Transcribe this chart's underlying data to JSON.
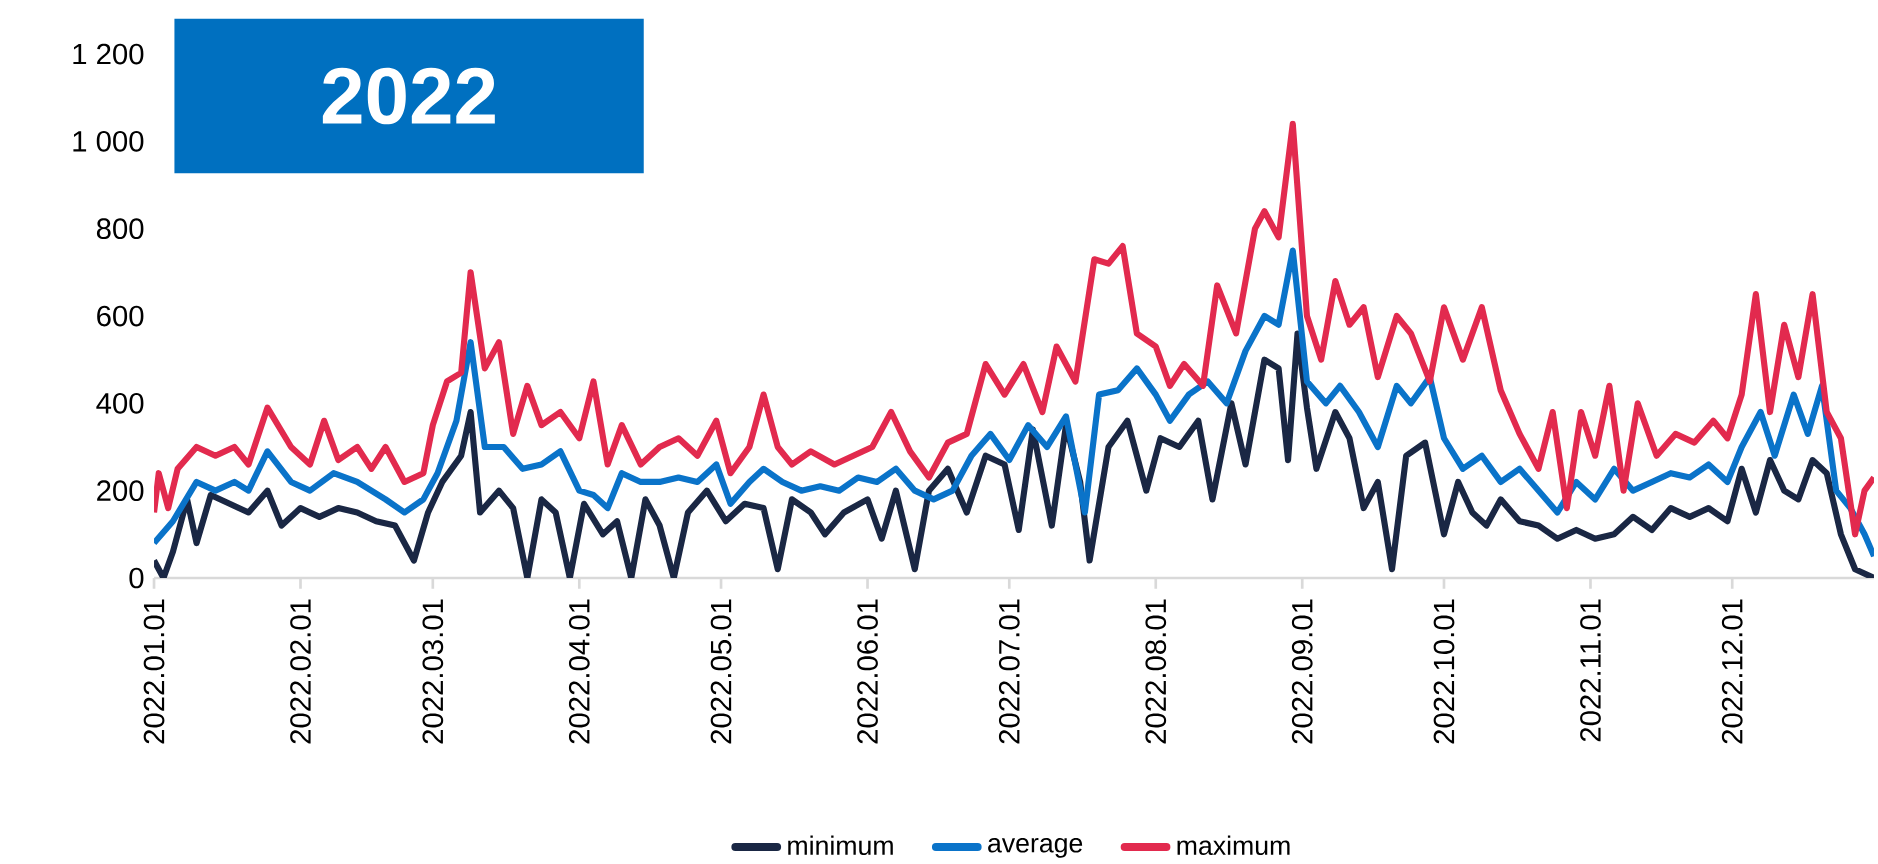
{
  "chart_data": {
    "type": "line",
    "title": "2022",
    "xlim": [
      "2022-01-01",
      "2022-12-31"
    ],
    "xticks": [
      {
        "value": "2022-01-01",
        "label": "2022.01.01"
      },
      {
        "value": "2022-02-01",
        "label": "2022.02.01"
      },
      {
        "value": "2022-03-01",
        "label": "2022.03.01"
      },
      {
        "value": "2022-04-01",
        "label": "2022.04.01"
      },
      {
        "value": "2022-05-01",
        "label": "2022.05.01"
      },
      {
        "value": "2022-06-01",
        "label": "2022.06.01"
      },
      {
        "value": "2022-07-01",
        "label": "2022.07.01"
      },
      {
        "value": "2022-08-01",
        "label": "2022.08.01"
      },
      {
        "value": "2022-09-01",
        "label": "2022.09.01"
      },
      {
        "value": "2022-10-01",
        "label": "2022.10.01"
      },
      {
        "value": "2022-11-01",
        "label": "2022.11.01"
      },
      {
        "value": "2022-12-01",
        "label": "2022.12.01"
      }
    ],
    "ylim": [
      0,
      1200
    ],
    "yticks": [
      0,
      200,
      400,
      600,
      800,
      {
        "value": 1000,
        "label": "1 000"
      },
      {
        "value": 1200,
        "label": "1 200"
      }
    ],
    "grid": false,
    "legend": "bottom",
    "marker": "none",
    "line_style": "solid",
    "series": [
      {
        "name": "minimum",
        "color": "#1a2744",
        "x": [
          "2022-01-01",
          "2022-01-03",
          "2022-01-05",
          "2022-01-08",
          "2022-01-10",
          "2022-01-13",
          "2022-01-17",
          "2022-01-21",
          "2022-01-25",
          "2022-01-28",
          "2022-02-01",
          "2022-02-05",
          "2022-02-09",
          "2022-02-13",
          "2022-02-17",
          "2022-02-21",
          "2022-02-25",
          "2022-02-28",
          "2022-03-03",
          "2022-03-07",
          "2022-03-09",
          "2022-03-11",
          "2022-03-15",
          "2022-03-18",
          "2022-03-21",
          "2022-03-24",
          "2022-03-27",
          "2022-03-30",
          "2022-04-02",
          "2022-04-06",
          "2022-04-09",
          "2022-04-12",
          "2022-04-15",
          "2022-04-18",
          "2022-04-21",
          "2022-04-24",
          "2022-04-28",
          "2022-05-02",
          "2022-05-06",
          "2022-05-10",
          "2022-05-13",
          "2022-05-16",
          "2022-05-20",
          "2022-05-23",
          "2022-05-27",
          "2022-06-01",
          "2022-06-04",
          "2022-06-07",
          "2022-06-11",
          "2022-06-14",
          "2022-06-18",
          "2022-06-22",
          "2022-06-26",
          "2022-06-30",
          "2022-07-03",
          "2022-07-06",
          "2022-07-10",
          "2022-07-13",
          "2022-07-16",
          "2022-07-18",
          "2022-07-22",
          "2022-07-26",
          "2022-07-30",
          "2022-08-02",
          "2022-08-06",
          "2022-08-10",
          "2022-08-13",
          "2022-08-17",
          "2022-08-20",
          "2022-08-24",
          "2022-08-27",
          "2022-08-29",
          "2022-08-31",
          "2022-09-02",
          "2022-09-04",
          "2022-09-08",
          "2022-09-11",
          "2022-09-14",
          "2022-09-17",
          "2022-09-20",
          "2022-09-23",
          "2022-09-27",
          "2022-10-01",
          "2022-10-04",
          "2022-10-07",
          "2022-10-10",
          "2022-10-13",
          "2022-10-17",
          "2022-10-21",
          "2022-10-25",
          "2022-10-29",
          "2022-11-02",
          "2022-11-06",
          "2022-11-10",
          "2022-11-14",
          "2022-11-18",
          "2022-11-22",
          "2022-11-26",
          "2022-11-30",
          "2022-12-03",
          "2022-12-06",
          "2022-12-09",
          "2022-12-12",
          "2022-12-15",
          "2022-12-18",
          "2022-12-21",
          "2022-12-24",
          "2022-12-27",
          "2022-12-31"
        ],
        "values": [
          40,
          0,
          60,
          180,
          80,
          190,
          170,
          150,
          200,
          120,
          160,
          140,
          160,
          150,
          130,
          120,
          40,
          150,
          220,
          280,
          380,
          150,
          200,
          160,
          0,
          180,
          150,
          0,
          170,
          100,
          130,
          0,
          180,
          120,
          0,
          150,
          200,
          130,
          170,
          160,
          20,
          180,
          150,
          100,
          150,
          180,
          90,
          200,
          20,
          200,
          250,
          150,
          280,
          260,
          110,
          340,
          120,
          350,
          220,
          40,
          300,
          360,
          200,
          320,
          300,
          360,
          180,
          400,
          260,
          500,
          480,
          270,
          560,
          390,
          250,
          380,
          320,
          160,
          220,
          20,
          280,
          310,
          100,
          220,
          150,
          120,
          180,
          130,
          120,
          90,
          110,
          90,
          100,
          140,
          110,
          160,
          140,
          160,
          130,
          250,
          150,
          270,
          200,
          180,
          270,
          240,
          100,
          20,
          0
        ]
      },
      {
        "name": "average",
        "color": "#0a73c9",
        "x": [
          "2022-01-01",
          "2022-01-05",
          "2022-01-10",
          "2022-01-14",
          "2022-01-18",
          "2022-01-21",
          "2022-01-25",
          "2022-01-30",
          "2022-02-03",
          "2022-02-08",
          "2022-02-13",
          "2022-02-19",
          "2022-02-23",
          "2022-02-27",
          "2022-03-02",
          "2022-03-06",
          "2022-03-09",
          "2022-03-12",
          "2022-03-16",
          "2022-03-20",
          "2022-03-24",
          "2022-03-28",
          "2022-04-01",
          "2022-04-04",
          "2022-04-07",
          "2022-04-10",
          "2022-04-14",
          "2022-04-18",
          "2022-04-22",
          "2022-04-26",
          "2022-04-30",
          "2022-05-03",
          "2022-05-07",
          "2022-05-10",
          "2022-05-14",
          "2022-05-18",
          "2022-05-22",
          "2022-05-26",
          "2022-05-30",
          "2022-06-03",
          "2022-06-07",
          "2022-06-11",
          "2022-06-15",
          "2022-06-19",
          "2022-06-23",
          "2022-06-27",
          "2022-07-01",
          "2022-07-05",
          "2022-07-09",
          "2022-07-13",
          "2022-07-17",
          "2022-07-20",
          "2022-07-24",
          "2022-07-28",
          "2022-08-01",
          "2022-08-04",
          "2022-08-08",
          "2022-08-12",
          "2022-08-16",
          "2022-08-20",
          "2022-08-24",
          "2022-08-27",
          "2022-08-30",
          "2022-09-02",
          "2022-09-06",
          "2022-09-09",
          "2022-09-13",
          "2022-09-17",
          "2022-09-21",
          "2022-09-24",
          "2022-09-28",
          "2022-10-01",
          "2022-10-05",
          "2022-10-09",
          "2022-10-13",
          "2022-10-17",
          "2022-10-21",
          "2022-10-25",
          "2022-10-29",
          "2022-11-02",
          "2022-11-06",
          "2022-11-10",
          "2022-11-14",
          "2022-11-18",
          "2022-11-22",
          "2022-11-26",
          "2022-11-30",
          "2022-12-03",
          "2022-12-07",
          "2022-12-10",
          "2022-12-14",
          "2022-12-17",
          "2022-12-20",
          "2022-12-23",
          "2022-12-26",
          "2022-12-29",
          "2022-12-31"
        ],
        "values": [
          80,
          130,
          220,
          200,
          220,
          200,
          290,
          220,
          200,
          240,
          220,
          180,
          150,
          180,
          240,
          360,
          540,
          300,
          300,
          250,
          260,
          290,
          200,
          190,
          160,
          240,
          220,
          220,
          230,
          220,
          260,
          170,
          220,
          250,
          220,
          200,
          210,
          200,
          230,
          220,
          250,
          200,
          180,
          200,
          280,
          330,
          270,
          350,
          300,
          370,
          150,
          420,
          430,
          480,
          420,
          360,
          420,
          450,
          400,
          520,
          600,
          580,
          750,
          450,
          400,
          440,
          380,
          300,
          440,
          400,
          460,
          320,
          250,
          280,
          220,
          250,
          200,
          150,
          220,
          180,
          250,
          200,
          220,
          240,
          230,
          260,
          220,
          300,
          380,
          280,
          420,
          330,
          440,
          200,
          160,
          100,
          50
        ]
      },
      {
        "name": "maximum",
        "color": "#e22a4e",
        "x": [
          "2022-01-01",
          "2022-01-02",
          "2022-01-04",
          "2022-01-06",
          "2022-01-10",
          "2022-01-14",
          "2022-01-18",
          "2022-01-21",
          "2022-01-25",
          "2022-01-30",
          "2022-02-03",
          "2022-02-06",
          "2022-02-09",
          "2022-02-13",
          "2022-02-16",
          "2022-02-19",
          "2022-02-23",
          "2022-02-27",
          "2022-03-01",
          "2022-03-04",
          "2022-03-07",
          "2022-03-09",
          "2022-03-12",
          "2022-03-15",
          "2022-03-18",
          "2022-03-21",
          "2022-03-24",
          "2022-03-28",
          "2022-04-01",
          "2022-04-04",
          "2022-04-07",
          "2022-04-10",
          "2022-04-14",
          "2022-04-18",
          "2022-04-22",
          "2022-04-26",
          "2022-04-30",
          "2022-05-03",
          "2022-05-07",
          "2022-05-10",
          "2022-05-13",
          "2022-05-16",
          "2022-05-20",
          "2022-05-25",
          "2022-05-29",
          "2022-06-02",
          "2022-06-06",
          "2022-06-10",
          "2022-06-14",
          "2022-06-18",
          "2022-06-22",
          "2022-06-26",
          "2022-06-30",
          "2022-07-04",
          "2022-07-08",
          "2022-07-11",
          "2022-07-15",
          "2022-07-19",
          "2022-07-22",
          "2022-07-25",
          "2022-07-28",
          "2022-08-01",
          "2022-08-04",
          "2022-08-07",
          "2022-08-11",
          "2022-08-14",
          "2022-08-18",
          "2022-08-22",
          "2022-08-24",
          "2022-08-27",
          "2022-08-30",
          "2022-09-02",
          "2022-09-05",
          "2022-09-08",
          "2022-09-11",
          "2022-09-14",
          "2022-09-17",
          "2022-09-21",
          "2022-09-24",
          "2022-09-28",
          "2022-10-01",
          "2022-10-05",
          "2022-10-09",
          "2022-10-13",
          "2022-10-17",
          "2022-10-21",
          "2022-10-24",
          "2022-10-27",
          "2022-10-30",
          "2022-11-02",
          "2022-11-05",
          "2022-11-08",
          "2022-11-11",
          "2022-11-15",
          "2022-11-19",
          "2022-11-23",
          "2022-11-27",
          "2022-11-30",
          "2022-12-03",
          "2022-12-06",
          "2022-12-09",
          "2022-12-12",
          "2022-12-15",
          "2022-12-18",
          "2022-12-21",
          "2022-12-24",
          "2022-12-27",
          "2022-12-29",
          "2022-12-31"
        ],
        "values": [
          150,
          240,
          160,
          250,
          300,
          280,
          300,
          260,
          390,
          300,
          260,
          360,
          270,
          300,
          250,
          300,
          220,
          240,
          350,
          450,
          470,
          700,
          480,
          540,
          330,
          440,
          350,
          380,
          320,
          450,
          260,
          350,
          260,
          300,
          320,
          280,
          360,
          240,
          300,
          420,
          300,
          260,
          290,
          260,
          280,
          300,
          380,
          290,
          230,
          310,
          330,
          490,
          420,
          490,
          380,
          530,
          450,
          730,
          720,
          760,
          560,
          530,
          440,
          490,
          440,
          670,
          560,
          800,
          840,
          780,
          1040,
          600,
          500,
          680,
          580,
          620,
          460,
          600,
          560,
          450,
          620,
          500,
          620,
          430,
          330,
          250,
          380,
          160,
          380,
          280,
          440,
          200,
          400,
          280,
          330,
          310,
          360,
          320,
          420,
          650,
          380,
          580,
          460,
          650,
          380,
          320,
          100,
          200,
          230
        ]
      }
    ]
  }
}
